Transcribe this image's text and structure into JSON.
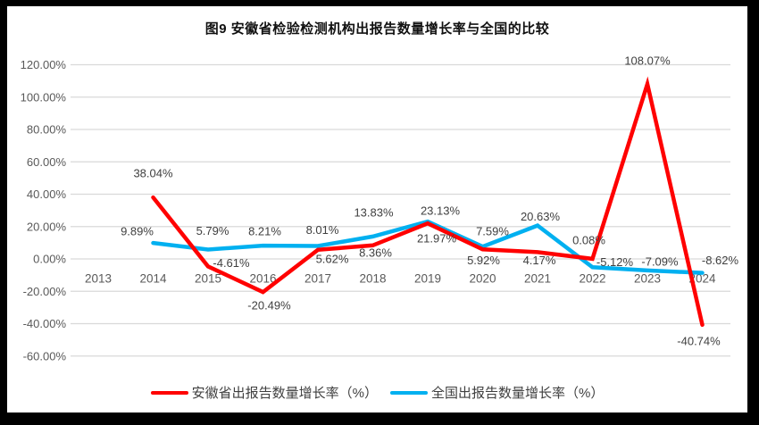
{
  "frame": {
    "background": "#000000",
    "canvas_background": "#ffffff"
  },
  "colors": {
    "gridline": "#d9d9d9",
    "axis_text": "#595959",
    "data_label_text": "#404040",
    "anhui_series": "#ff0000",
    "national_series": "#00b0f0"
  },
  "chart_data": {
    "type": "line",
    "title": "图9 安徽省检验检测机构出报告数量增长率与全国的比较",
    "categories": [
      "2013",
      "2014",
      "2015",
      "2016",
      "2017",
      "2018",
      "2019",
      "2020",
      "2021",
      "2022",
      "2023",
      "2024"
    ],
    "series": [
      {
        "name": "安徽省出报告数量增长率（%）",
        "color": "#ff0000",
        "values": [
          null,
          38.04,
          -4.61,
          -20.49,
          5.62,
          8.36,
          21.97,
          5.92,
          4.17,
          0.08,
          108.07,
          -40.74
        ],
        "labels": [
          "",
          "38.04%",
          "-4.61%",
          "-20.49%",
          "5.62%",
          "8.36%",
          "21.97%",
          "5.92%",
          "4.17%",
          "0.08%",
          "108.07%",
          "-40.74%"
        ]
      },
      {
        "name": "全国出报告数量增长率（%）",
        "color": "#00b0f0",
        "values": [
          null,
          9.89,
          5.79,
          8.21,
          8.01,
          13.83,
          23.13,
          7.59,
          20.63,
          -5.12,
          -7.09,
          -8.62
        ],
        "labels": [
          "",
          "9.89%",
          "5.79%",
          "8.21%",
          "8.01%",
          "13.83%",
          "23.13%",
          "7.59%",
          "20.63%",
          "-5.12%",
          "-7.09%",
          "-8.62%"
        ]
      }
    ],
    "y_axis": {
      "min": -60,
      "max": 120,
      "step": 20,
      "ticks": [
        "120.00%",
        "100.00%",
        "80.00%",
        "60.00%",
        "40.00%",
        "20.00%",
        "0.00%",
        "-20.00%",
        "-40.00%",
        "-60.00%"
      ]
    },
    "grid": true,
    "data_labels": true,
    "legend_position": "bottom"
  }
}
